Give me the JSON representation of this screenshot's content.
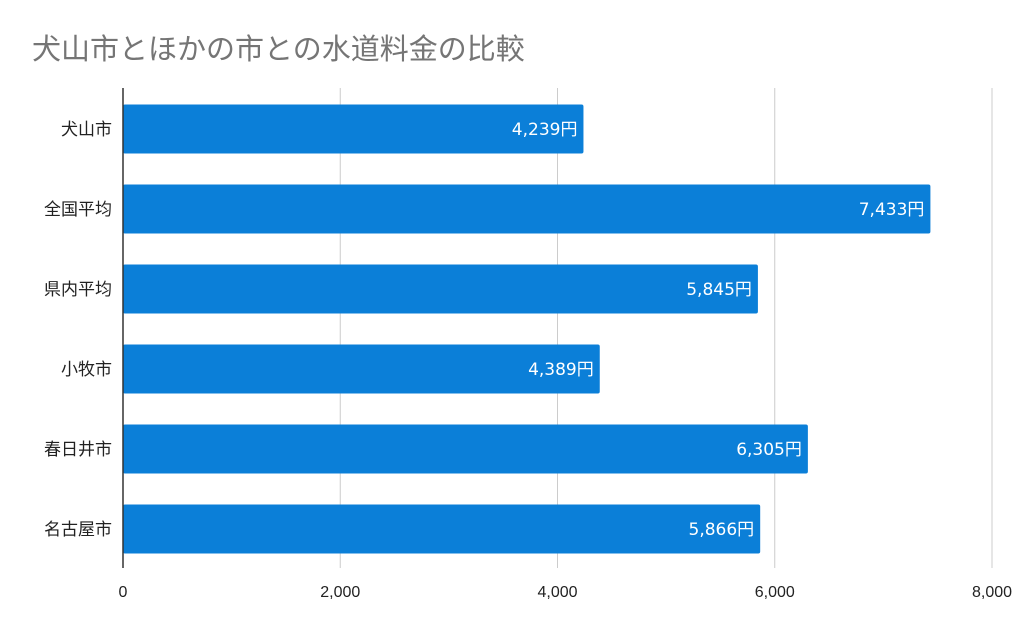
{
  "chart_data": {
    "type": "bar",
    "orientation": "horizontal",
    "title": "犬山市とほかの市との水道料金の比較",
    "categories": [
      "犬山市",
      "全国平均",
      "県内平均",
      "小牧市",
      "春日井市",
      "名古屋市"
    ],
    "values": [
      4239,
      7433,
      5845,
      4389,
      6305,
      5866
    ],
    "data_labels": [
      "4,239円",
      "7,433円",
      "5,845円",
      "4,389円",
      "6,305円",
      "5,866円"
    ],
    "xlim": [
      0,
      8000
    ],
    "xticks": [
      0,
      2000,
      4000,
      6000,
      8000
    ],
    "xtick_labels": [
      "0",
      "2,000",
      "4,000",
      "6,000",
      "8,000"
    ],
    "xlabel": "",
    "ylabel": "",
    "grid": true,
    "bar_color": "#0b7fd8"
  }
}
